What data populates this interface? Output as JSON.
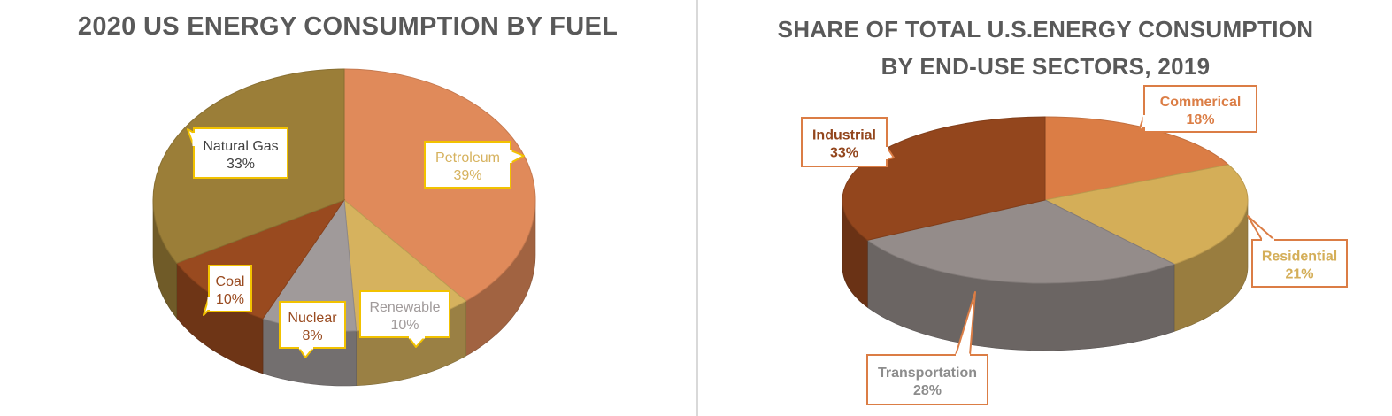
{
  "chart_data": [
    {
      "type": "pie",
      "title": "2020 US ENERGY CONSUMPTION BY FUEL",
      "categories": [
        "Petroleum",
        "Renewable",
        "Nuclear",
        "Coal",
        "Natural Gas"
      ],
      "values": [
        39,
        10,
        8,
        10,
        33
      ],
      "value_labels": [
        "39%",
        "10%",
        "8%",
        "10%",
        "33%"
      ],
      "colors": [
        "#E08A5A",
        "#D6B25E",
        "#A09A9A",
        "#994A1F",
        "#9B7E38"
      ],
      "label_text_colors": [
        "#D6B25E",
        "#A09A9A",
        "#994A1F",
        "#994A1F",
        "#404040"
      ],
      "label_border_color": "#F2C200",
      "legend": "none"
    },
    {
      "type": "pie",
      "title_lines": [
        "SHARE OF TOTAL U.S.ENERGY CONSUMPTION",
        "BY END-USE SECTORS, 2019"
      ],
      "categories": [
        "Commerical",
        "Residential",
        "Transportation",
        "Industrial"
      ],
      "values": [
        18,
        21,
        28,
        33
      ],
      "value_labels": [
        "18%",
        "21%",
        "28%",
        "33%"
      ],
      "colors": [
        "#DB7D45",
        "#D4AE58",
        "#948C8A",
        "#93461D"
      ],
      "label_text_colors": [
        "#DB7D45",
        "#D4AE58",
        "#8C8C8C",
        "#93461D"
      ],
      "label_border_color": "#DB7D45",
      "legend": "none"
    }
  ]
}
